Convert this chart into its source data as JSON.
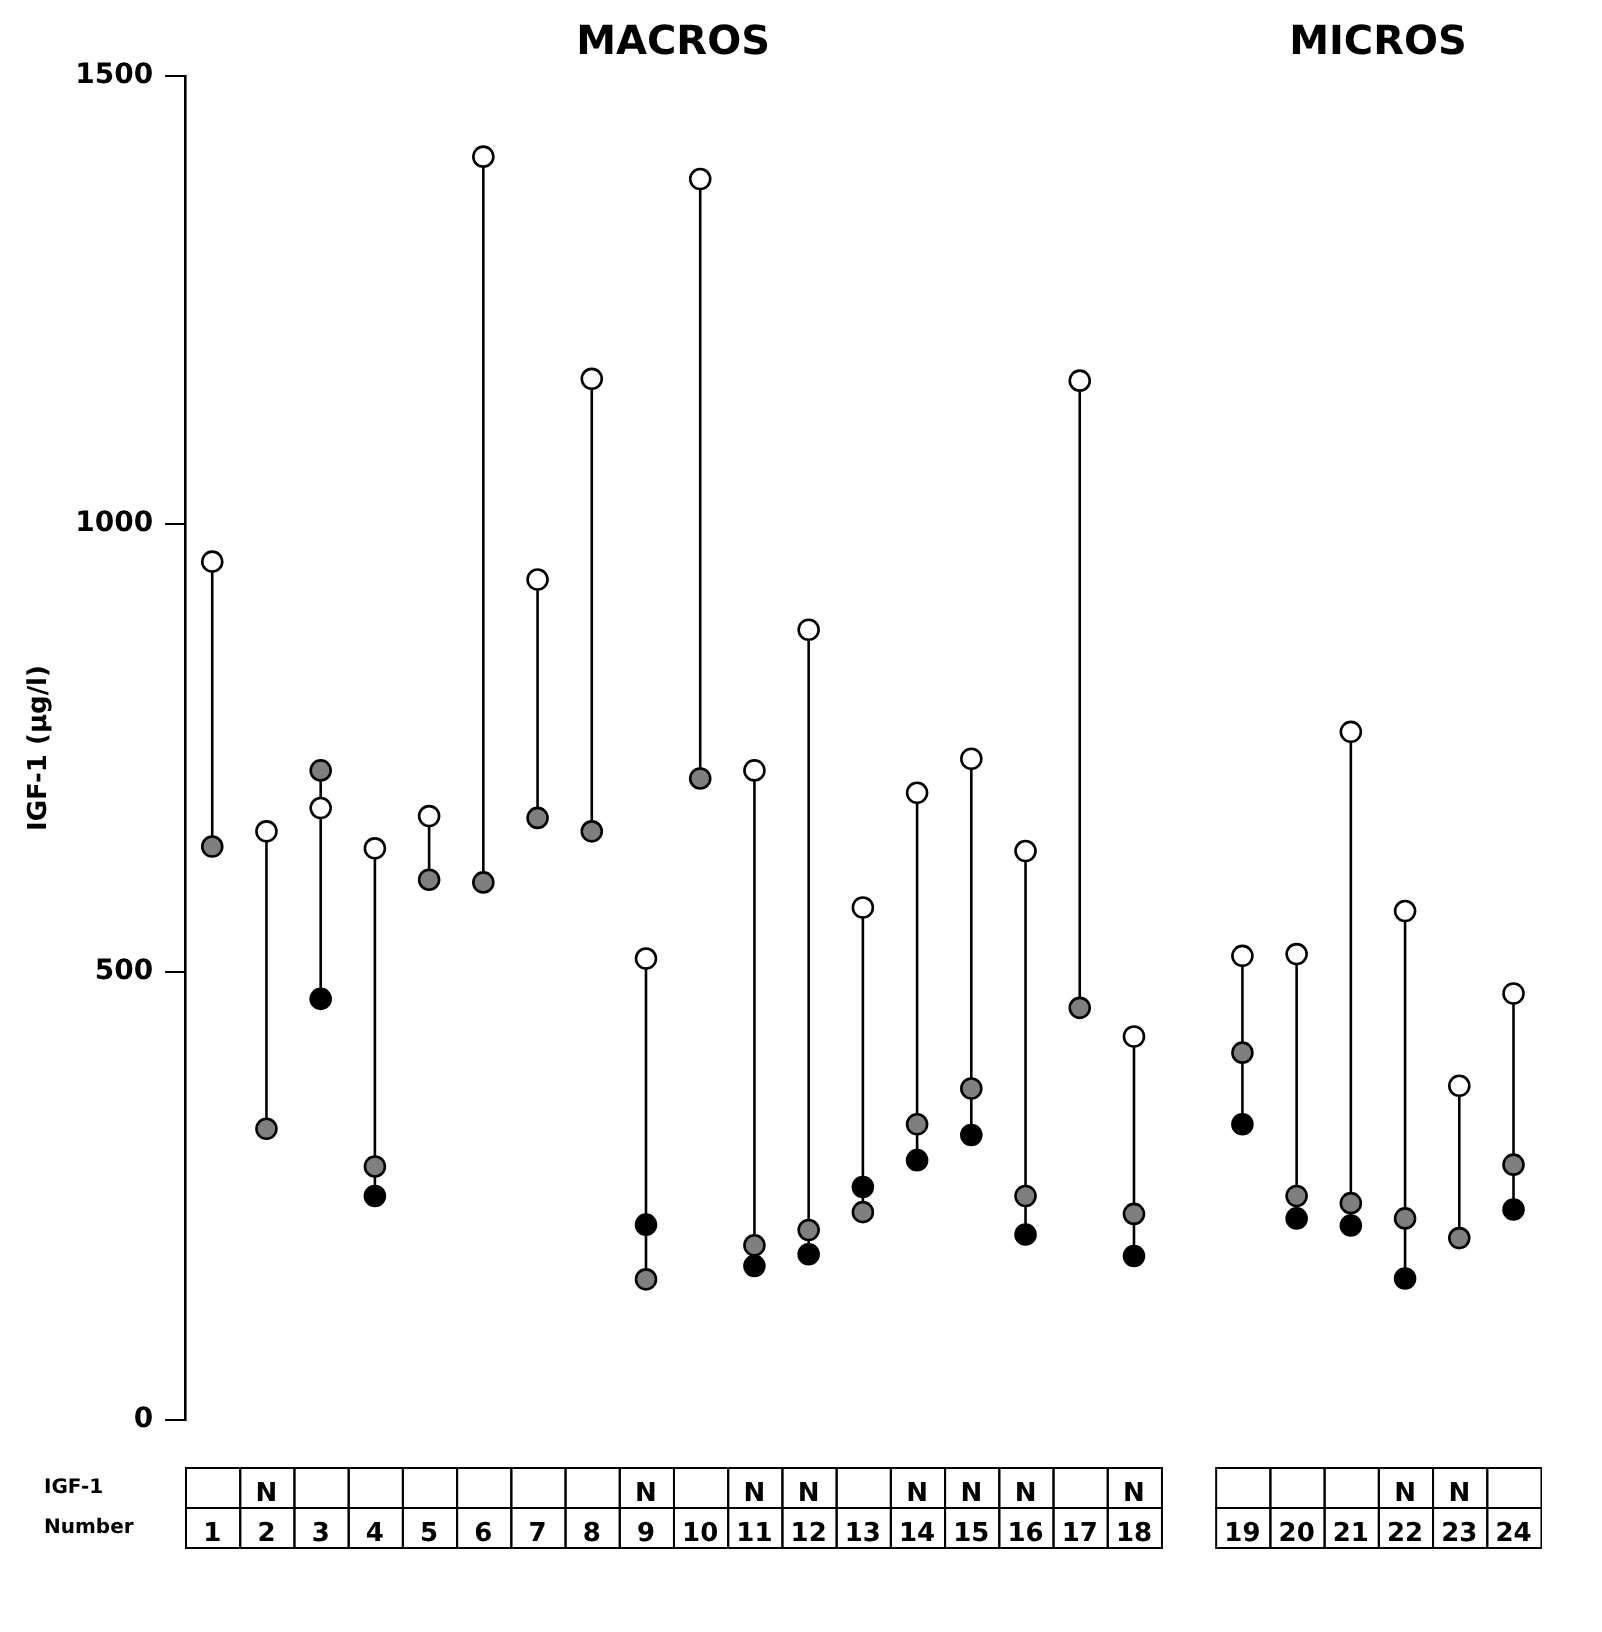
{
  "chart_data": {
    "type": "scatter",
    "ylabel": "IGF-1 (µg/l)",
    "xlabel": "Number",
    "categories": [
      "1",
      "N\n2",
      "3",
      "4",
      "5",
      "6",
      "7",
      "8",
      "N\n9",
      "10",
      "N\n11",
      "N\n12",
      "13",
      "N\n14",
      "N\n15",
      "N\n16",
      "17",
      "N\n18",
      null,
      "19",
      "20",
      "21",
      "N\n22",
      "N\n23",
      "24"
    ],
    "series": [
      {
        "color": "#ffffff",
        "marker": "circle",
        "values": [
          958,
          657,
          683,
          638,
          674,
          1410,
          938,
          1162,
          515,
          1385,
          725,
          882,
          572,
          700,
          738,
          635,
          1160,
          428,
          null,
          518,
          520,
          768,
          568,
          373,
          476
        ]
      },
      {
        "color": "#7f7f7f",
        "marker": "circle",
        "values": [
          640,
          325,
          725,
          283,
          603,
          600,
          672,
          657,
          157,
          716,
          195,
          212,
          232,
          330,
          370,
          250,
          460,
          230,
          null,
          410,
          250,
          242,
          225,
          203,
          285
        ]
      },
      {
        "color": "#000000",
        "marker": "circle",
        "values": [
          null,
          null,
          470,
          250,
          null,
          null,
          null,
          null,
          218,
          null,
          172,
          185,
          260,
          290,
          318,
          207,
          null,
          183,
          null,
          330,
          225,
          217,
          158,
          null,
          235
        ]
      }
    ],
    "ylim": [
      0,
      1500
    ],
    "yticks": [
      0,
      500,
      1000,
      1500
    ],
    "grid": false,
    "legend": false,
    "annotations": [
      "MACROS",
      "MICROS",
      "IGF-1"
    ]
  }
}
